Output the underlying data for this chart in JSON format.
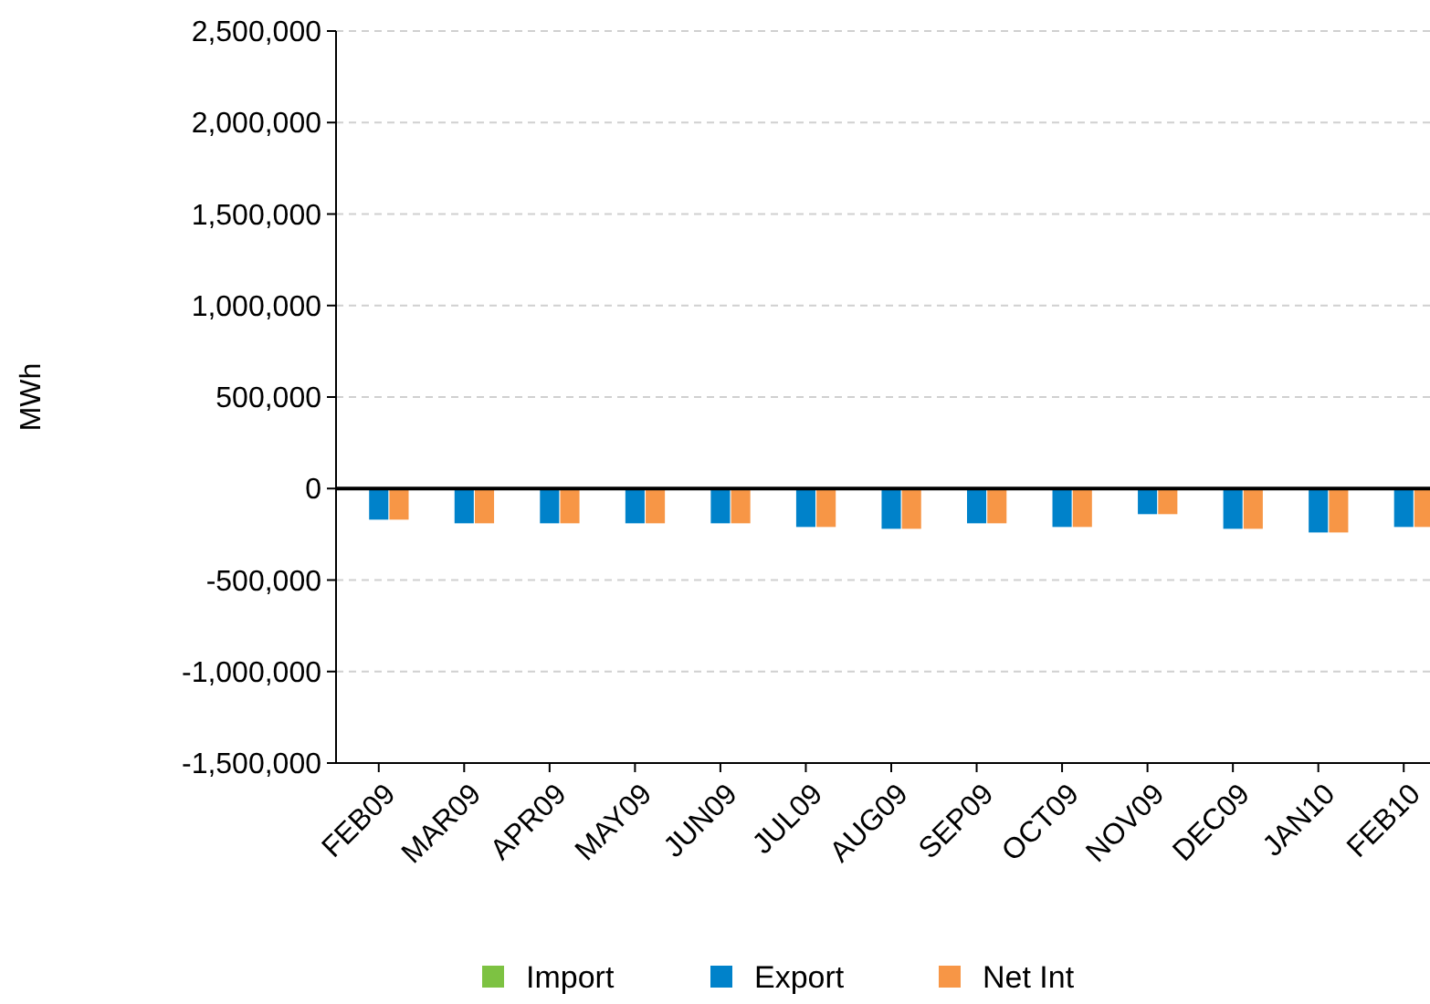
{
  "chart_data": {
    "type": "bar",
    "ylabel": "MWh",
    "categories": [
      "FEB09",
      "MAR09",
      "APR09",
      "MAY09",
      "JUN09",
      "JUL09",
      "AUG09",
      "SEP09",
      "OCT09",
      "NOV09",
      "DEC09",
      "JAN10",
      "FEB10"
    ],
    "series": [
      {
        "name": "Import",
        "color": "#7dc242",
        "values": [
          0,
          0,
          0,
          0,
          0,
          0,
          0,
          0,
          0,
          0,
          0,
          0,
          0
        ]
      },
      {
        "name": "Export",
        "color": "#0082ca",
        "values": [
          -170000,
          -190000,
          -190000,
          -190000,
          -190000,
          -210000,
          -220000,
          -190000,
          -210000,
          -140000,
          -220000,
          -240000,
          -210000
        ]
      },
      {
        "name": "Net Int",
        "color": "#f79646",
        "values": [
          -170000,
          -190000,
          -190000,
          -190000,
          -190000,
          -210000,
          -220000,
          -190000,
          -210000,
          -140000,
          -220000,
          -240000,
          -210000
        ]
      }
    ],
    "ylim": [
      -1500000,
      2500000
    ],
    "yticks": [
      {
        "value": -1500000,
        "label": "-1,500,000"
      },
      {
        "value": -1000000,
        "label": "-1,000,000"
      },
      {
        "value": -500000,
        "label": "-500,000"
      },
      0,
      {
        "value": 500000,
        "label": "500,000"
      },
      {
        "value": 1000000,
        "label": "1,000,000"
      },
      {
        "value": 1500000,
        "label": "1,500,000"
      },
      {
        "value": 2000000,
        "label": "2,000,000"
      },
      {
        "value": 2500000,
        "label": "2,500,000"
      }
    ],
    "grid": "y",
    "legend": "bottom"
  }
}
